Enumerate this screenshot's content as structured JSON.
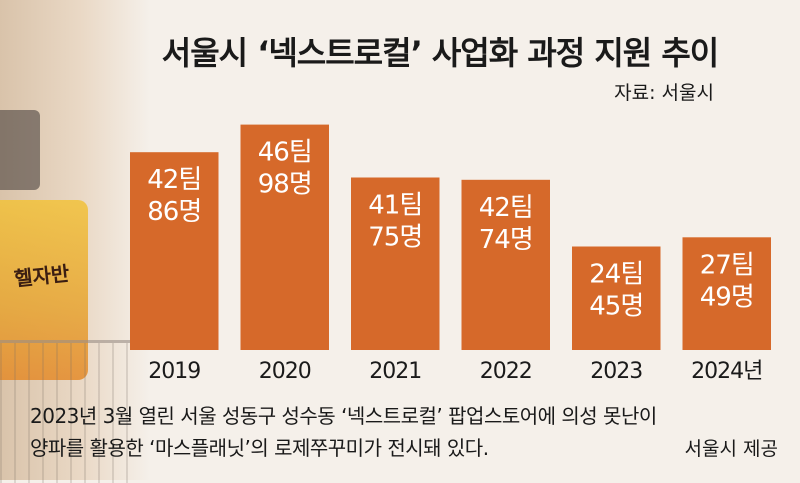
{
  "title": "서울시 ‘넥스트로컬’ 사업화 과정 지원 추이",
  "source": "자료: 서울시",
  "colors": {
    "bar": "#d6692a",
    "bar_text": "#ffffff",
    "background": "#f5f0ea"
  },
  "chart_data": {
    "type": "bar",
    "categories": [
      "2019",
      "2020",
      "2021",
      "2022",
      "2023",
      "2024년"
    ],
    "series": [
      {
        "name": "팀",
        "values": [
          42,
          46,
          41,
          42,
          24,
          27
        ]
      },
      {
        "name": "명",
        "values": [
          86,
          98,
          75,
          74,
          45,
          49
        ]
      }
    ],
    "bar_labels": [
      [
        "42팀",
        "86명"
      ],
      [
        "46팀",
        "98명"
      ],
      [
        "41팀",
        "75명"
      ],
      [
        "42팀",
        "74명"
      ],
      [
        "24팀",
        "45명"
      ],
      [
        "27팀",
        "49명"
      ]
    ],
    "title": "서울시 ‘넥스트로컬’ 사업화 과정 지원 추이",
    "xlabel": "",
    "ylabel": "",
    "grid": false,
    "legend": "none"
  },
  "caption": {
    "line1": "2023년 3월 열린 서울 성동구 성수동 ‘넥스트로컬’ 팝업스토어에 의성 못난이",
    "line2": "양파를 활용한 ‘마스플래닛’의 로제쭈꾸미가 전시돼 있다.",
    "credit": "서울시 제공"
  },
  "photo_text": "헬자반"
}
